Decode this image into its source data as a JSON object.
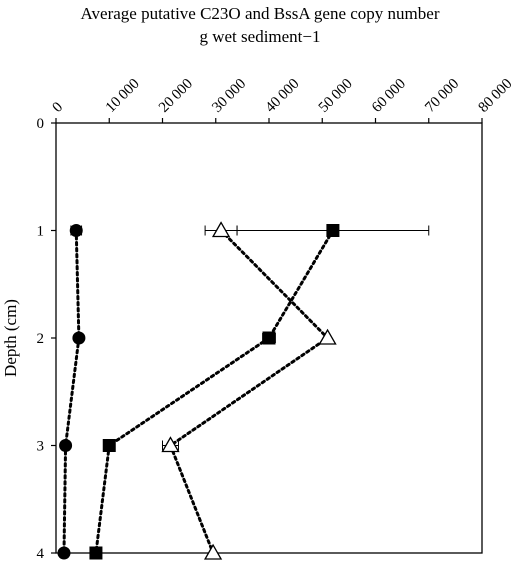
{
  "chart_data": {
    "type": "scatter",
    "title": "Average putative C23O and BssA gene copy number",
    "title_line2": "g  wet sediment−1",
    "xlabel": "",
    "ylabel": "Depth (cm)",
    "x_axis_position": "top",
    "xlim": [
      0,
      80000
    ],
    "ylim": [
      0,
      4
    ],
    "y_inverted": true,
    "x_ticks": [
      0,
      10000,
      20000,
      30000,
      40000,
      50000,
      60000,
      70000,
      80000
    ],
    "x_tick_labels": [
      "0",
      "10 000",
      "20 000",
      "30 000",
      "40 000",
      "50 000",
      "60 000",
      "70 000",
      "80 000"
    ],
    "y_ticks": [
      0,
      1,
      2,
      3,
      4
    ],
    "y_tick_labels": [
      "0",
      "1",
      "2",
      "3",
      "4"
    ],
    "grid": false,
    "legend": "none",
    "series": [
      {
        "marker": "filled-circle",
        "line_style": "dotted",
        "color": "#000000",
        "points": [
          {
            "x": 3800,
            "y": 1,
            "xerr": 1000
          },
          {
            "x": 4300,
            "y": 2,
            "xerr": 0
          },
          {
            "x": 1800,
            "y": 3,
            "xerr": 0
          },
          {
            "x": 1500,
            "y": 4,
            "xerr": 0
          }
        ]
      },
      {
        "marker": "filled-square",
        "line_style": "dotted",
        "color": "#000000",
        "points": [
          {
            "x": 52000,
            "y": 1,
            "xerr": 18000
          },
          {
            "x": 40000,
            "y": 2,
            "xerr": 1200
          },
          {
            "x": 10000,
            "y": 3,
            "xerr": 1000
          },
          {
            "x": 7500,
            "y": 4,
            "xerr": 0
          }
        ]
      },
      {
        "marker": "open-triangle",
        "line_style": "dotted",
        "color": "#000000",
        "points": [
          {
            "x": 31000,
            "y": 1,
            "xerr": 3000
          },
          {
            "x": 51000,
            "y": 2,
            "xerr": 0
          },
          {
            "x": 21500,
            "y": 3,
            "xerr": 1500
          },
          {
            "x": 29500,
            "y": 4,
            "xerr": 0
          }
        ]
      }
    ]
  }
}
